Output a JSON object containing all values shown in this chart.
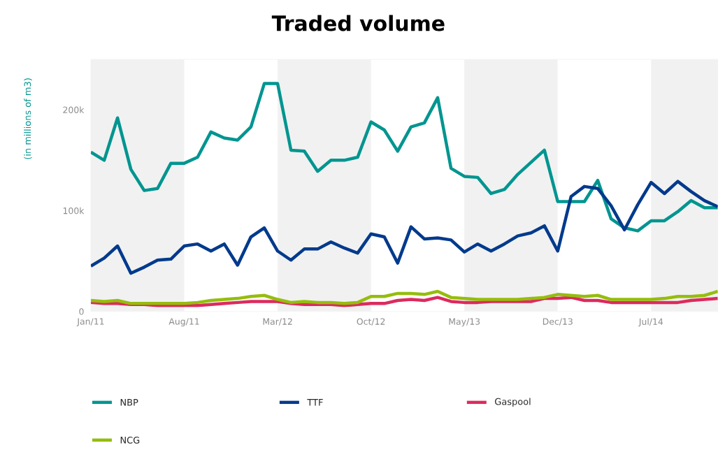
{
  "chart_data": {
    "type": "line",
    "title": "Traded volume",
    "ylabel": "(in millions of m3)",
    "x": [
      "2011-01",
      "2011-02",
      "2011-03",
      "2011-04",
      "2011-05",
      "2011-06",
      "2011-07",
      "2011-08",
      "2011-09",
      "2011-10",
      "2011-11",
      "2011-12",
      "2012-01",
      "2012-02",
      "2012-03",
      "2012-04",
      "2012-05",
      "2012-06",
      "2012-07",
      "2012-08",
      "2012-09",
      "2012-10",
      "2012-11",
      "2012-12",
      "2013-01",
      "2013-02",
      "2013-03",
      "2013-04",
      "2013-05",
      "2013-06",
      "2013-07",
      "2013-08",
      "2013-09",
      "2013-10",
      "2013-11",
      "2013-12",
      "2014-01",
      "2014-02",
      "2014-03",
      "2014-04",
      "2014-05",
      "2014-06",
      "2014-07",
      "2014-08",
      "2014-09",
      "2014-10",
      "2014-11",
      "2014-12"
    ],
    "series": [
      {
        "name": "NBP",
        "color": "#009590",
        "values": [
          158000,
          150000,
          192000,
          141000,
          120000,
          122000,
          147000,
          147000,
          153000,
          178000,
          172000,
          170000,
          183000,
          226000,
          226000,
          160000,
          159000,
          139000,
          150000,
          150000,
          153000,
          188000,
          180000,
          159000,
          183000,
          187000,
          212000,
          142000,
          134000,
          133000,
          117000,
          121000,
          136000,
          148000,
          160000,
          109000,
          109000,
          109000,
          130000,
          92000,
          83000,
          80000,
          90000,
          90000,
          99000,
          110000,
          103000,
          103000
        ]
      },
      {
        "name": "TTF",
        "color": "#003a8c",
        "values": [
          45000,
          53000,
          65000,
          38000,
          44000,
          51000,
          52000,
          65000,
          67000,
          60000,
          67000,
          46000,
          74000,
          83000,
          60000,
          51000,
          62000,
          62000,
          69000,
          63000,
          58000,
          77000,
          74000,
          48000,
          84000,
          72000,
          73000,
          71000,
          59000,
          67000,
          60000,
          67000,
          75000,
          78000,
          85000,
          60000,
          114000,
          124000,
          122000,
          105000,
          81000,
          106000,
          128000,
          117000,
          129000,
          119000,
          110000,
          104000
        ]
      },
      {
        "name": "Gaspool",
        "color": "#dc2b5e",
        "values": [
          9000,
          8000,
          8000,
          7000,
          7000,
          6000,
          6000,
          6000,
          6000,
          7000,
          8000,
          9000,
          10000,
          10000,
          10000,
          8000,
          7000,
          7000,
          7000,
          6000,
          7000,
          8000,
          8000,
          11000,
          12000,
          11000,
          14000,
          10000,
          9000,
          9000,
          10000,
          10000,
          10000,
          10000,
          13000,
          13000,
          14000,
          11000,
          11000,
          9000,
          9000,
          9000,
          9000,
          9000,
          9000,
          11000,
          12000,
          13000
        ]
      },
      {
        "name": "NCG",
        "color": "#95bd0d",
        "values": [
          11000,
          10000,
          11000,
          8000,
          8000,
          8000,
          8000,
          8000,
          9000,
          11000,
          12000,
          13000,
          15000,
          16000,
          12000,
          9000,
          10000,
          9000,
          9000,
          8000,
          9000,
          15000,
          15000,
          18000,
          18000,
          17000,
          20000,
          14000,
          13000,
          12000,
          12000,
          12000,
          12000,
          13000,
          14000,
          17000,
          16000,
          15000,
          16000,
          12000,
          12000,
          12000,
          12000,
          13000,
          15000,
          15000,
          16000,
          20000
        ]
      }
    ],
    "xlim": [
      "2011-01",
      "2014-12"
    ],
    "ylim": [
      0,
      250000
    ],
    "xticks": [
      {
        "value": "2011-01",
        "label": "Jan/11"
      },
      {
        "value": "2011-08",
        "label": "Aug/11"
      },
      {
        "value": "2012-03",
        "label": "Mar/12"
      },
      {
        "value": "2012-10",
        "label": "Oct/12"
      },
      {
        "value": "2013-05",
        "label": "May/13"
      },
      {
        "value": "2013-12",
        "label": "Dec/13"
      },
      {
        "value": "2014-07",
        "label": "Jul/14"
      }
    ],
    "yticks": [
      0,
      {
        "value": 100000,
        "label": "100k"
      },
      {
        "value": 200000,
        "label": "200k"
      }
    ],
    "bands": [
      {
        "axis": "x",
        "from": "2011-01",
        "to": "2011-08",
        "color": "#f1f1f1"
      },
      {
        "axis": "x",
        "from": "2012-03",
        "to": "2012-10",
        "color": "#f1f1f1"
      },
      {
        "axis": "x",
        "from": "2013-05",
        "to": "2013-12",
        "color": "#f1f1f1"
      },
      {
        "axis": "x",
        "from": "2014-07",
        "to": "2014-12",
        "color": "#f1f1f1"
      }
    ],
    "legend": "bottom",
    "grid": false,
    "marker": "none",
    "line_style": "solid"
  }
}
